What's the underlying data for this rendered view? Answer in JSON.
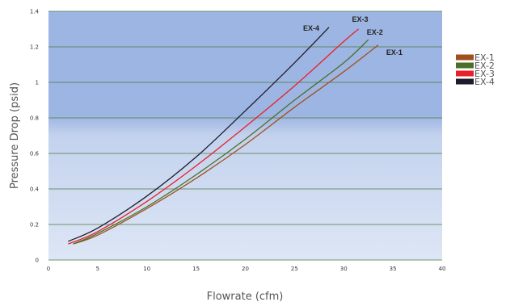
{
  "chart_data": {
    "type": "line",
    "title": "",
    "xlabel": "Flowrate (cfm)",
    "ylabel": "Pressure Drop (psid)",
    "xlim": [
      0,
      40
    ],
    "ylim": [
      0,
      1.4
    ],
    "x_ticks": [
      "0",
      "5",
      "10",
      "15",
      "20",
      "25",
      "30",
      "35",
      "40"
    ],
    "y_ticks": [
      "0",
      "0.2",
      "0.4",
      "0.6",
      "0.8",
      "1",
      "1.2",
      "1.4"
    ],
    "grid": true,
    "legend_position": "right",
    "series": [
      {
        "name": "EX-1",
        "color": "#a0501e",
        "label": "EX-1",
        "x": [
          2.5,
          5,
          10,
          15,
          20,
          25,
          30,
          33.5
        ],
        "y": [
          0.09,
          0.14,
          0.29,
          0.46,
          0.65,
          0.86,
          1.06,
          1.21
        ]
      },
      {
        "name": "EX-2",
        "color": "#4a6f2a",
        "label": "EX-2",
        "x": [
          2.5,
          5,
          10,
          15,
          20,
          25,
          30,
          32.5
        ],
        "y": [
          0.09,
          0.15,
          0.3,
          0.48,
          0.68,
          0.9,
          1.11,
          1.24
        ]
      },
      {
        "name": "EX-3",
        "color": "#e8202a",
        "label": "EX-3",
        "x": [
          2,
          5,
          10,
          15,
          20,
          25,
          30,
          31.5
        ],
        "y": [
          0.09,
          0.16,
          0.33,
          0.53,
          0.75,
          0.98,
          1.23,
          1.3
        ]
      },
      {
        "name": "EX-4",
        "color": "#1c1c2a",
        "label": "EX-4",
        "x": [
          2,
          5,
          10,
          15,
          20,
          25,
          28.5
        ],
        "y": [
          0.105,
          0.18,
          0.36,
          0.58,
          0.84,
          1.11,
          1.31
        ]
      }
    ]
  }
}
